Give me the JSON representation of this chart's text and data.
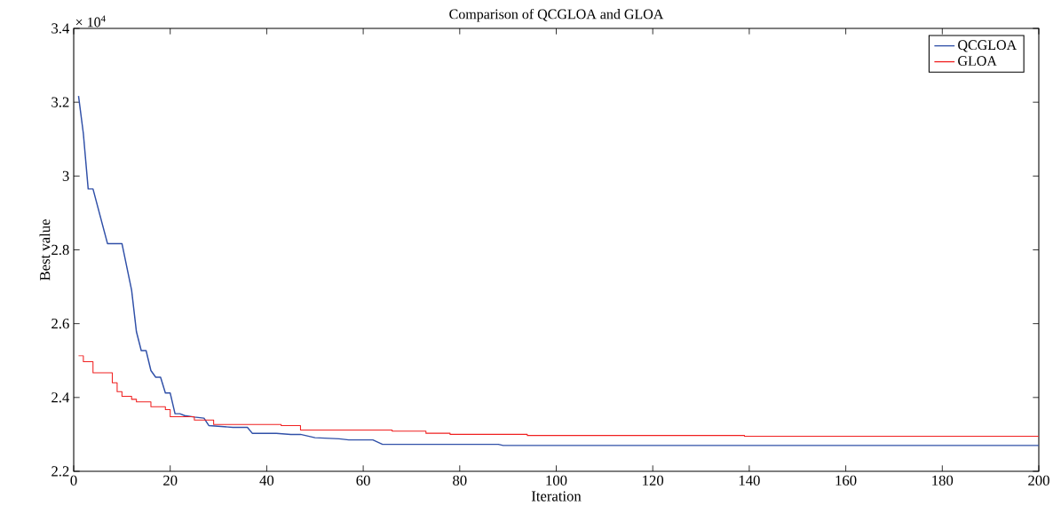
{
  "chart_data": {
    "type": "line",
    "title": "Comparison of QCGLOA and GLOA",
    "xlabel": "Iteration",
    "ylabel": "Best value",
    "annotations": [
      "× 10$^{4}$"
    ],
    "xlim": [
      0,
      200
    ],
    "xticks": [
      0,
      20,
      40,
      60,
      80,
      100,
      120,
      140,
      160,
      180,
      200
    ],
    "ylim": [
      2.2,
      3.4
    ],
    "yticks": [
      2.2,
      2.4,
      2.6,
      2.8,
      3,
      3.2,
      3.4
    ],
    "legend": "top right",
    "grid": false,
    "series": [
      {
        "name": "QCGLOA",
        "type": "line",
        "color": "#3050a8",
        "x": [
          1,
          2,
          3,
          4,
          7,
          10,
          12,
          13,
          14,
          15,
          16,
          17,
          18,
          19,
          20,
          21,
          22,
          23,
          25,
          27,
          28,
          33,
          36,
          37,
          42,
          45,
          47,
          50,
          55,
          57,
          62,
          64,
          88,
          89,
          200
        ],
        "values": [
          3.217,
          3.115,
          2.965,
          2.965,
          2.817,
          2.817,
          2.691,
          2.578,
          2.527,
          2.527,
          2.473,
          2.455,
          2.455,
          2.412,
          2.412,
          2.356,
          2.356,
          2.351,
          2.347,
          2.344,
          2.324,
          2.319,
          2.319,
          2.303,
          2.303,
          2.3,
          2.3,
          2.291,
          2.288,
          2.285,
          2.285,
          2.273,
          2.273,
          2.27,
          2.27
        ]
      },
      {
        "name": "GLOA",
        "type": "step",
        "color": "#f02020",
        "x": [
          1,
          2,
          4,
          8,
          9,
          10,
          12,
          13,
          16,
          19,
          20,
          25,
          29,
          43,
          47,
          66,
          73,
          78,
          94,
          139,
          200
        ],
        "values": [
          2.513,
          2.497,
          2.467,
          2.44,
          2.416,
          2.403,
          2.395,
          2.388,
          2.375,
          2.367,
          2.348,
          2.339,
          2.327,
          2.324,
          2.312,
          2.309,
          2.303,
          2.3,
          2.297,
          2.295,
          2.295
        ]
      }
    ]
  }
}
